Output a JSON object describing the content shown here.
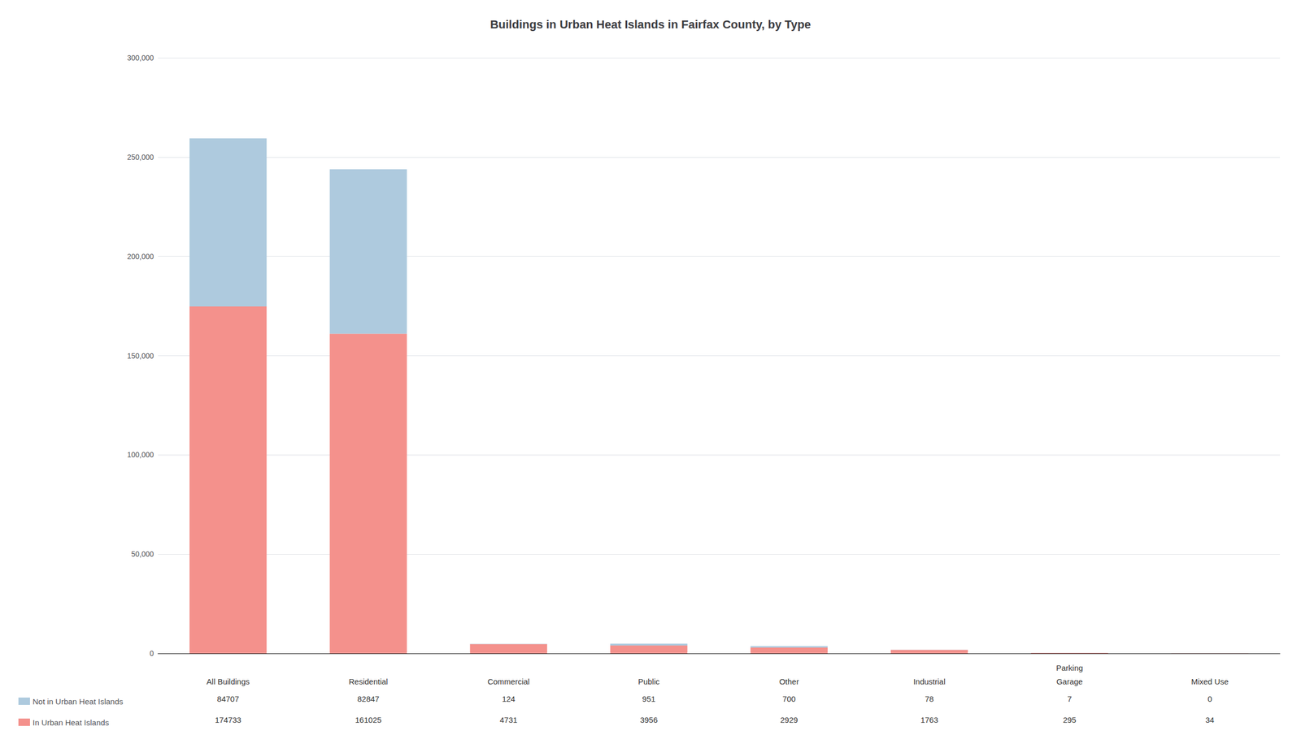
{
  "chart_data": {
    "type": "bar",
    "title": "Buildings in Urban Heat Islands in Fairfax County, by Type",
    "categories": [
      "All Buildings",
      "Residential",
      "Commercial",
      "Public",
      "Other",
      "Industrial",
      "Parking\nGarage",
      "Mixed Use"
    ],
    "series": [
      {
        "name": "In Urban Heat Islands",
        "color": "#F4918C",
        "values": [
          174733,
          161025,
          4731,
          3956,
          2929,
          1763,
          295,
          34
        ]
      },
      {
        "name": "Not in Urban Heat Islands",
        "color": "#AECADE",
        "values": [
          84707,
          82847,
          124,
          951,
          700,
          78,
          7,
          0
        ]
      }
    ],
    "stacked": true,
    "ylim": [
      0,
      300000
    ],
    "yticks": [
      0,
      {
        "value": 50000,
        "label": "50,000"
      },
      {
        "value": 100000,
        "label": "100,000"
      },
      {
        "value": 150000,
        "label": "150,000"
      },
      {
        "value": 200000,
        "label": "200,000"
      },
      {
        "value": 250000,
        "label": "250,000"
      },
      {
        "value": 300000,
        "label": "300,000"
      }
    ],
    "grid": true,
    "legend": "bottom-left"
  }
}
